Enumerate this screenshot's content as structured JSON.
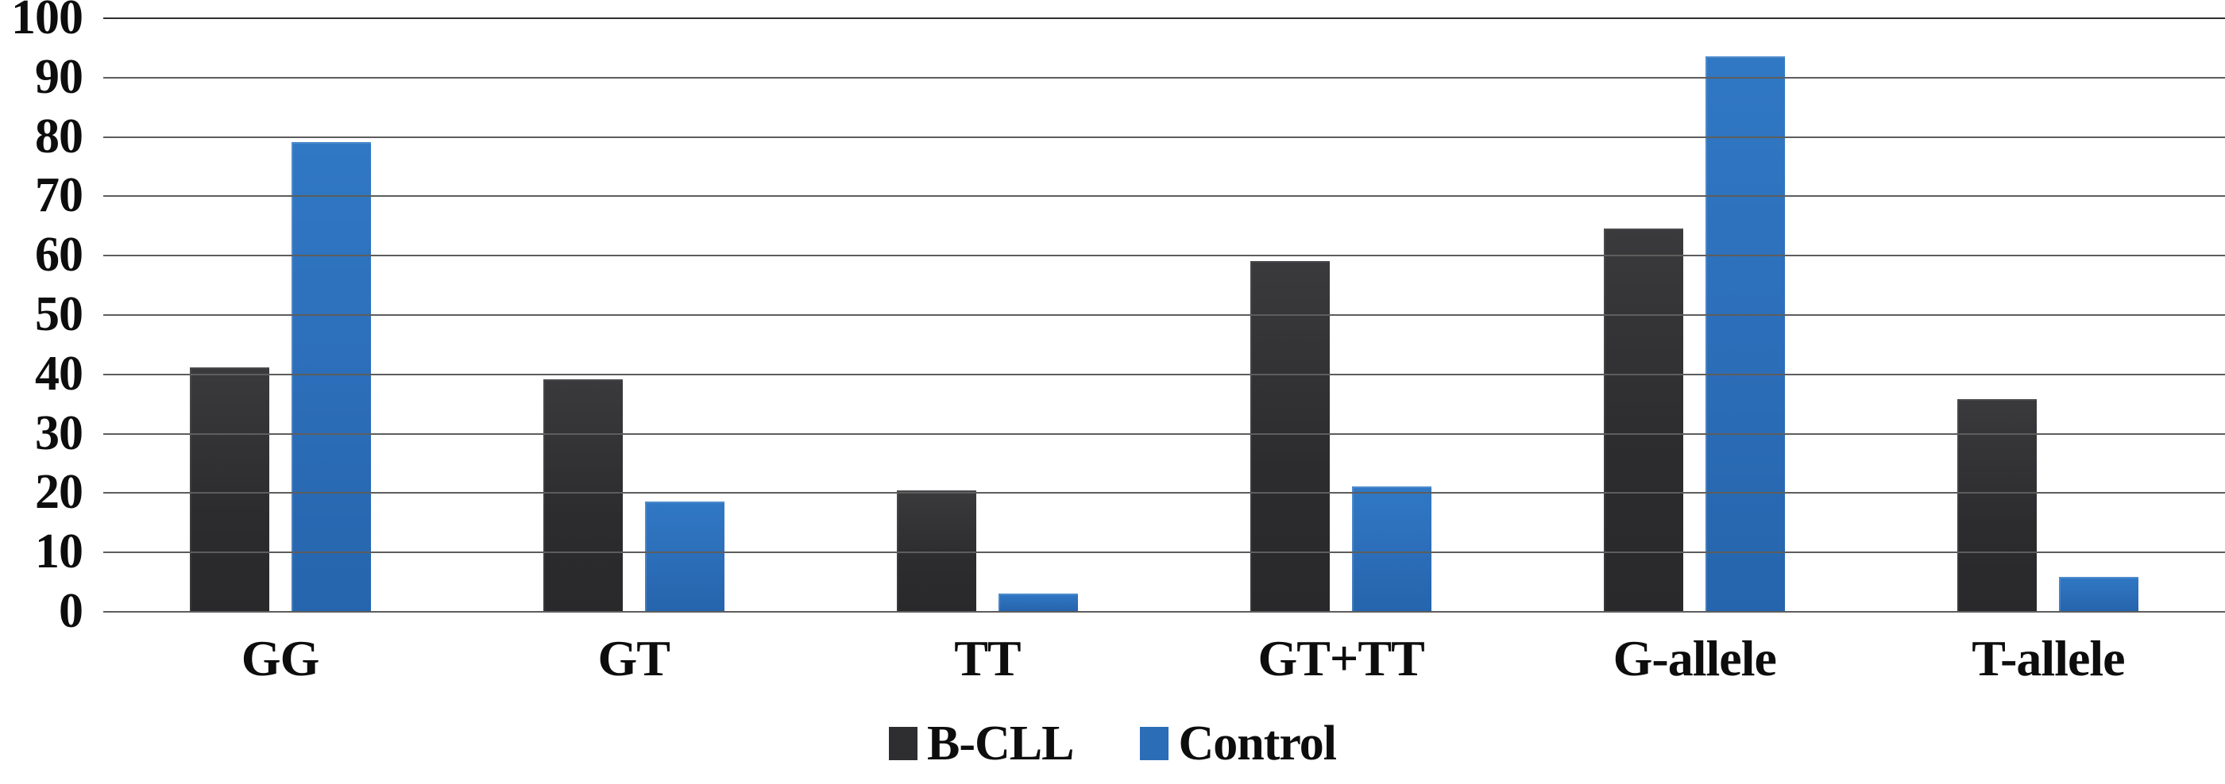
{
  "chart_data": {
    "type": "bar",
    "title": "",
    "xlabel": "",
    "ylabel": "",
    "categories": [
      "GG",
      "GT",
      "TT",
      "GT+TT",
      "G-allele",
      "T-allele"
    ],
    "series": [
      {
        "name": "B-CLL",
        "color": "#2e2e30",
        "values": [
          41,
          39,
          20.3,
          59,
          64.5,
          35.7
        ]
      },
      {
        "name": "Control",
        "color": "#2c6db8",
        "values": [
          79,
          18.5,
          3,
          21,
          93.5,
          5.8
        ]
      }
    ],
    "ylim": [
      0,
      100
    ],
    "yticks": [
      0,
      10,
      20,
      30,
      40,
      50,
      60,
      70,
      80,
      90,
      100
    ],
    "grid": "horizontal-only",
    "legend_position": "bottom-center"
  },
  "legend": {
    "items": [
      {
        "label": "B-CLL",
        "color": "#2e2e30"
      },
      {
        "label": "Control",
        "color": "#2c6db8"
      }
    ]
  },
  "colors": {
    "background": "#ffffff",
    "gridline": "#5d5d5d",
    "text": "#0d0d0d",
    "bcll_bar": "#2e2e30",
    "control_bar": "#2c6db8"
  }
}
